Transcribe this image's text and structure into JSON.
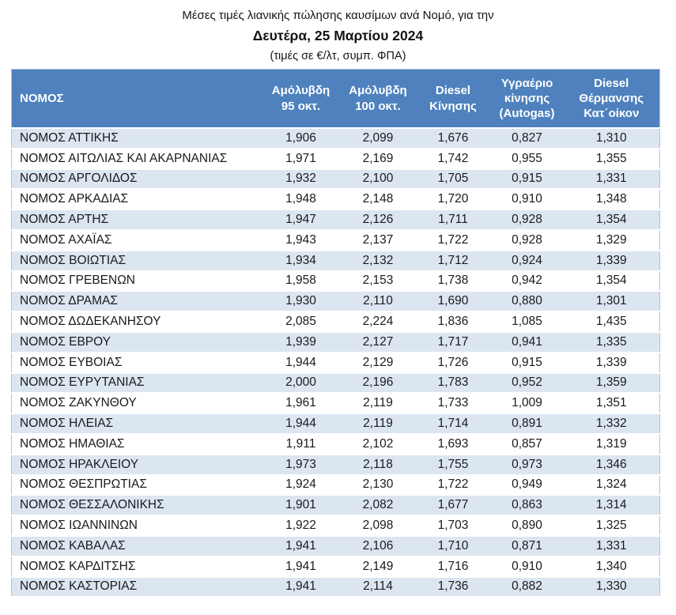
{
  "header": {
    "title_line1": "Μέσες τιμές λιανικής πώλησης καυσίμων ανά Νομό, για την",
    "title_line2": "Δευτέρα, 25 Μαρτίου 2024",
    "title_line3": "(τιμές σε €/λτ, συμπ. ΦΠΑ)"
  },
  "colors": {
    "table_header_bg": "#4e81bd",
    "table_header_text": "#ffffff",
    "stripe_row_bg": "#dce6f1",
    "table_border": "#aec4dd"
  },
  "table": {
    "header_labels": [
      "ΝΟΜΟΣ",
      "Αμόλυβδη\n95 οκτ.",
      "Αμόλυβδη\n100 οκτ.",
      "Diesel\nΚίνησης",
      "Υγραέριο\nκίνησης\n(Autogas)",
      "Diesel\nΘέρμανσης\nΚατ΄οίκον"
    ]
  },
  "chart_data": {
    "type": "table",
    "title": "Μέσες τιμές λιανικής πώλησης καυσίμων ανά Νομό, για την Δευτέρα, 25 Μαρτίου 2024 (τιμές σε €/λτ, συμπ. ΦΠΑ)",
    "columns": [
      "ΝΟΜΟΣ",
      "Αμόλυβδη 95 οκτ.",
      "Αμόλυβδη 100 οκτ.",
      "Diesel Κίνησης",
      "Υγραέριο κίνησης (Autogas)",
      "Diesel Θέρμανσης Κατ΄οίκον"
    ],
    "rows": [
      [
        "ΝΟΜΟΣ ΑΤΤΙΚΗΣ",
        "1,906",
        "2,099",
        "1,676",
        "0,827",
        "1,310"
      ],
      [
        "ΝΟΜΟΣ ΑΙΤΩΛΙΑΣ ΚΑΙ ΑΚΑΡΝΑΝΙΑΣ",
        "1,971",
        "2,169",
        "1,742",
        "0,955",
        "1,355"
      ],
      [
        "ΝΟΜΟΣ ΑΡΓΟΛΙΔΟΣ",
        "1,932",
        "2,100",
        "1,705",
        "0,915",
        "1,331"
      ],
      [
        "ΝΟΜΟΣ ΑΡΚΑΔΙΑΣ",
        "1,948",
        "2,148",
        "1,720",
        "0,910",
        "1,348"
      ],
      [
        "ΝΟΜΟΣ ΑΡΤΗΣ",
        "1,947",
        "2,126",
        "1,711",
        "0,928",
        "1,354"
      ],
      [
        "ΝΟΜΟΣ ΑΧΑΪΑΣ",
        "1,943",
        "2,137",
        "1,722",
        "0,928",
        "1,329"
      ],
      [
        "ΝΟΜΟΣ ΒΟΙΩΤΙΑΣ",
        "1,934",
        "2,132",
        "1,712",
        "0,924",
        "1,339"
      ],
      [
        "ΝΟΜΟΣ ΓΡΕΒΕΝΩΝ",
        "1,958",
        "2,153",
        "1,738",
        "0,942",
        "1,354"
      ],
      [
        "ΝΟΜΟΣ ΔΡΑΜΑΣ",
        "1,930",
        "2,110",
        "1,690",
        "0,880",
        "1,301"
      ],
      [
        "ΝΟΜΟΣ ΔΩΔΕΚΑΝΗΣΟΥ",
        "2,085",
        "2,224",
        "1,836",
        "1,085",
        "1,435"
      ],
      [
        "ΝΟΜΟΣ ΕΒΡΟΥ",
        "1,939",
        "2,127",
        "1,717",
        "0,941",
        "1,335"
      ],
      [
        "ΝΟΜΟΣ ΕΥΒΟΙΑΣ",
        "1,944",
        "2,129",
        "1,726",
        "0,915",
        "1,339"
      ],
      [
        "ΝΟΜΟΣ ΕΥΡΥΤΑΝΙΑΣ",
        "2,000",
        "2,196",
        "1,783",
        "0,952",
        "1,359"
      ],
      [
        "ΝΟΜΟΣ ΖΑΚΥΝΘΟΥ",
        "1,961",
        "2,119",
        "1,733",
        "1,009",
        "1,351"
      ],
      [
        "ΝΟΜΟΣ ΗΛΕΙΑΣ",
        "1,944",
        "2,119",
        "1,714",
        "0,891",
        "1,332"
      ],
      [
        "ΝΟΜΟΣ ΗΜΑΘΙΑΣ",
        "1,911",
        "2,102",
        "1,693",
        "0,857",
        "1,319"
      ],
      [
        "ΝΟΜΟΣ ΗΡΑΚΛΕΙΟΥ",
        "1,973",
        "2,118",
        "1,755",
        "0,973",
        "1,346"
      ],
      [
        "ΝΟΜΟΣ ΘΕΣΠΡΩΤΙΑΣ",
        "1,924",
        "2,130",
        "1,722",
        "0,949",
        "1,324"
      ],
      [
        "ΝΟΜΟΣ ΘΕΣΣΑΛΟΝΙΚΗΣ",
        "1,901",
        "2,082",
        "1,677",
        "0,863",
        "1,314"
      ],
      [
        "ΝΟΜΟΣ ΙΩΑΝΝΙΝΩΝ",
        "1,922",
        "2,098",
        "1,703",
        "0,890",
        "1,325"
      ],
      [
        "ΝΟΜΟΣ ΚΑΒΑΛΑΣ",
        "1,941",
        "2,106",
        "1,710",
        "0,871",
        "1,331"
      ],
      [
        "ΝΟΜΟΣ ΚΑΡΔΙΤΣΗΣ",
        "1,941",
        "2,149",
        "1,716",
        "0,910",
        "1,340"
      ],
      [
        "ΝΟΜΟΣ ΚΑΣΤΟΡΙΑΣ",
        "1,941",
        "2,114",
        "1,736",
        "0,882",
        "1,330"
      ]
    ]
  }
}
